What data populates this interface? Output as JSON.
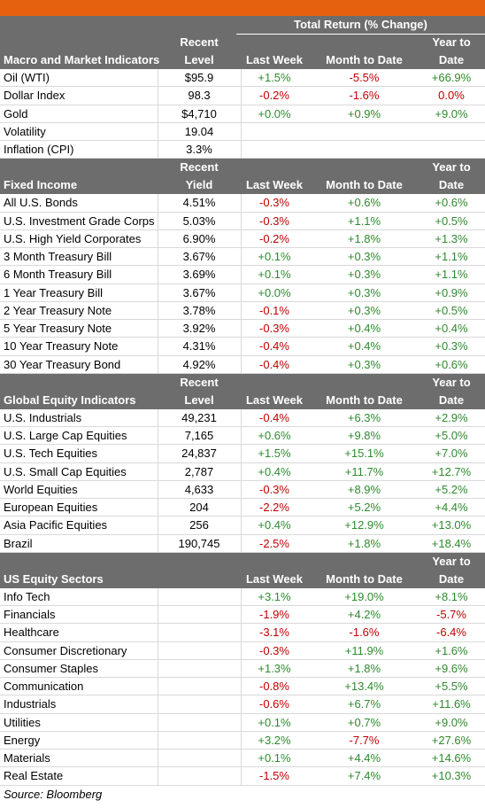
{
  "total_return_label": "Total Return (% Change)",
  "sections": [
    {
      "title": "Macro and Market Indicators",
      "level_header": [
        "Recent",
        "Level"
      ],
      "lw_header": "Last Week",
      "mtd_header": "Month to Date",
      "ytd_header": [
        "Year to",
        "Date"
      ],
      "rows": [
        {
          "name": "Oil (WTI)",
          "level": "$95.9",
          "lw": "+1.5%",
          "mtd": "-5.5%",
          "ytd": "+66.9%"
        },
        {
          "name": "Dollar Index",
          "level": "98.3",
          "lw": "-0.2%",
          "mtd": "-1.6%",
          "ytd": "0.0%"
        },
        {
          "name": "Gold",
          "level": "$4,710",
          "lw": "+0.0%",
          "mtd": "+0.9%",
          "ytd": "+9.0%"
        },
        {
          "name": "Volatility",
          "level": "19.04",
          "lw": "",
          "mtd": "",
          "ytd": ""
        },
        {
          "name": "Inflation (CPI)",
          "level": "3.3%",
          "lw": "",
          "mtd": "",
          "ytd": ""
        }
      ]
    },
    {
      "title": "Fixed Income",
      "level_header": [
        "Recent",
        "Yield"
      ],
      "lw_header": "Last Week",
      "mtd_header": "Month to Date",
      "ytd_header": [
        "Year to",
        "Date"
      ],
      "rows": [
        {
          "name": "All U.S. Bonds",
          "level": "4.51%",
          "lw": "-0.3%",
          "mtd": "+0.6%",
          "ytd": "+0.6%"
        },
        {
          "name": "U.S. Investment Grade Corps",
          "level": "5.03%",
          "lw": "-0.3%",
          "mtd": "+1.1%",
          "ytd": "+0.5%"
        },
        {
          "name": "U.S. High Yield Corporates",
          "level": "6.90%",
          "lw": "-0.2%",
          "mtd": "+1.8%",
          "ytd": "+1.3%"
        },
        {
          "name": "3 Month Treasury Bill",
          "level": "3.67%",
          "lw": "+0.1%",
          "mtd": "+0.3%",
          "ytd": "+1.1%"
        },
        {
          "name": "6 Month Treasury Bill",
          "level": "3.69%",
          "lw": "+0.1%",
          "mtd": "+0.3%",
          "ytd": "+1.1%"
        },
        {
          "name": "1 Year Treasury Bill",
          "level": "3.67%",
          "lw": "+0.0%",
          "mtd": "+0.3%",
          "ytd": "+0.9%"
        },
        {
          "name": "2 Year Treasury Note",
          "level": "3.78%",
          "lw": "-0.1%",
          "mtd": "+0.3%",
          "ytd": "+0.5%"
        },
        {
          "name": "5 Year Treasury Note",
          "level": "3.92%",
          "lw": "-0.3%",
          "mtd": "+0.4%",
          "ytd": "+0.4%"
        },
        {
          "name": "10 Year Treasury Note",
          "level": "4.31%",
          "lw": "-0.4%",
          "mtd": "+0.4%",
          "ytd": "+0.3%"
        },
        {
          "name": "30 Year Treasury Bond",
          "level": "4.92%",
          "lw": "-0.4%",
          "mtd": "+0.3%",
          "ytd": "+0.6%"
        }
      ]
    },
    {
      "title": "Global Equity Indicators",
      "level_header": [
        "Recent",
        "Level"
      ],
      "lw_header": "Last Week",
      "mtd_header": "Month to Date",
      "ytd_header": [
        "Year to",
        "Date"
      ],
      "rows": [
        {
          "name": "U.S. Industrials",
          "level": "49,231",
          "lw": "-0.4%",
          "mtd": "+6.3%",
          "ytd": "+2.9%"
        },
        {
          "name": "U.S. Large Cap Equities",
          "level": "7,165",
          "lw": "+0.6%",
          "mtd": "+9.8%",
          "ytd": "+5.0%"
        },
        {
          "name": "U.S. Tech Equities",
          "level": "24,837",
          "lw": "+1.5%",
          "mtd": "+15.1%",
          "ytd": "+7.0%"
        },
        {
          "name": "U.S. Small Cap Equities",
          "level": "2,787",
          "lw": "+0.4%",
          "mtd": "+11.7%",
          "ytd": "+12.7%"
        },
        {
          "name": "World Equities",
          "level": "4,633",
          "lw": "-0.3%",
          "mtd": "+8.9%",
          "ytd": "+5.2%"
        },
        {
          "name": "European Equities",
          "level": "204",
          "lw": "-2.2%",
          "mtd": "+5.2%",
          "ytd": "+4.4%"
        },
        {
          "name": "Asia Pacific Equities",
          "level": "256",
          "lw": "+0.4%",
          "mtd": "+12.9%",
          "ytd": "+13.0%"
        },
        {
          "name": "Brazil",
          "level": "190,745",
          "lw": "-2.5%",
          "mtd": "+1.8%",
          "ytd": "+18.4%"
        }
      ]
    },
    {
      "title": "US Equity Sectors",
      "level_header": [
        "",
        ""
      ],
      "lw_header": "Last Week",
      "mtd_header": "Month to Date",
      "ytd_header": [
        "Year to",
        "Date"
      ],
      "rows": [
        {
          "name": "Info Tech",
          "level": "",
          "lw": "+3.1%",
          "mtd": "+19.0%",
          "ytd": "+8.1%"
        },
        {
          "name": "Financials",
          "level": "",
          "lw": "-1.9%",
          "mtd": "+4.2%",
          "ytd": "-5.7%"
        },
        {
          "name": "Healthcare",
          "level": "",
          "lw": "-3.1%",
          "mtd": "-1.6%",
          "ytd": "-6.4%"
        },
        {
          "name": "Consumer Discretionary",
          "level": "",
          "lw": "-0.3%",
          "mtd": "+11.9%",
          "ytd": "+1.6%"
        },
        {
          "name": "Consumer Staples",
          "level": "",
          "lw": "+1.3%",
          "mtd": "+1.8%",
          "ytd": "+9.6%"
        },
        {
          "name": "Communication",
          "level": "",
          "lw": "-0.8%",
          "mtd": "+13.4%",
          "ytd": "+5.5%"
        },
        {
          "name": "Industrials",
          "level": "",
          "lw": "-0.6%",
          "mtd": "+6.7%",
          "ytd": "+11.6%"
        },
        {
          "name": "Utilities",
          "level": "",
          "lw": "+0.1%",
          "mtd": "+0.7%",
          "ytd": "+9.0%"
        },
        {
          "name": "Energy",
          "level": "",
          "lw": "+3.2%",
          "mtd": "-7.7%",
          "ytd": "+27.6%"
        },
        {
          "name": "Materials",
          "level": "",
          "lw": "+0.1%",
          "mtd": "+4.4%",
          "ytd": "+14.6%"
        },
        {
          "name": "Real Estate",
          "level": "",
          "lw": "-1.5%",
          "mtd": "+7.4%",
          "ytd": "+10.3%"
        }
      ]
    }
  ],
  "source": "Source: Bloomberg",
  "colors": {
    "accent": "#e5600f",
    "header": "#6d6d6d",
    "positive": "#2e8b2e",
    "negative": "#c00000"
  }
}
